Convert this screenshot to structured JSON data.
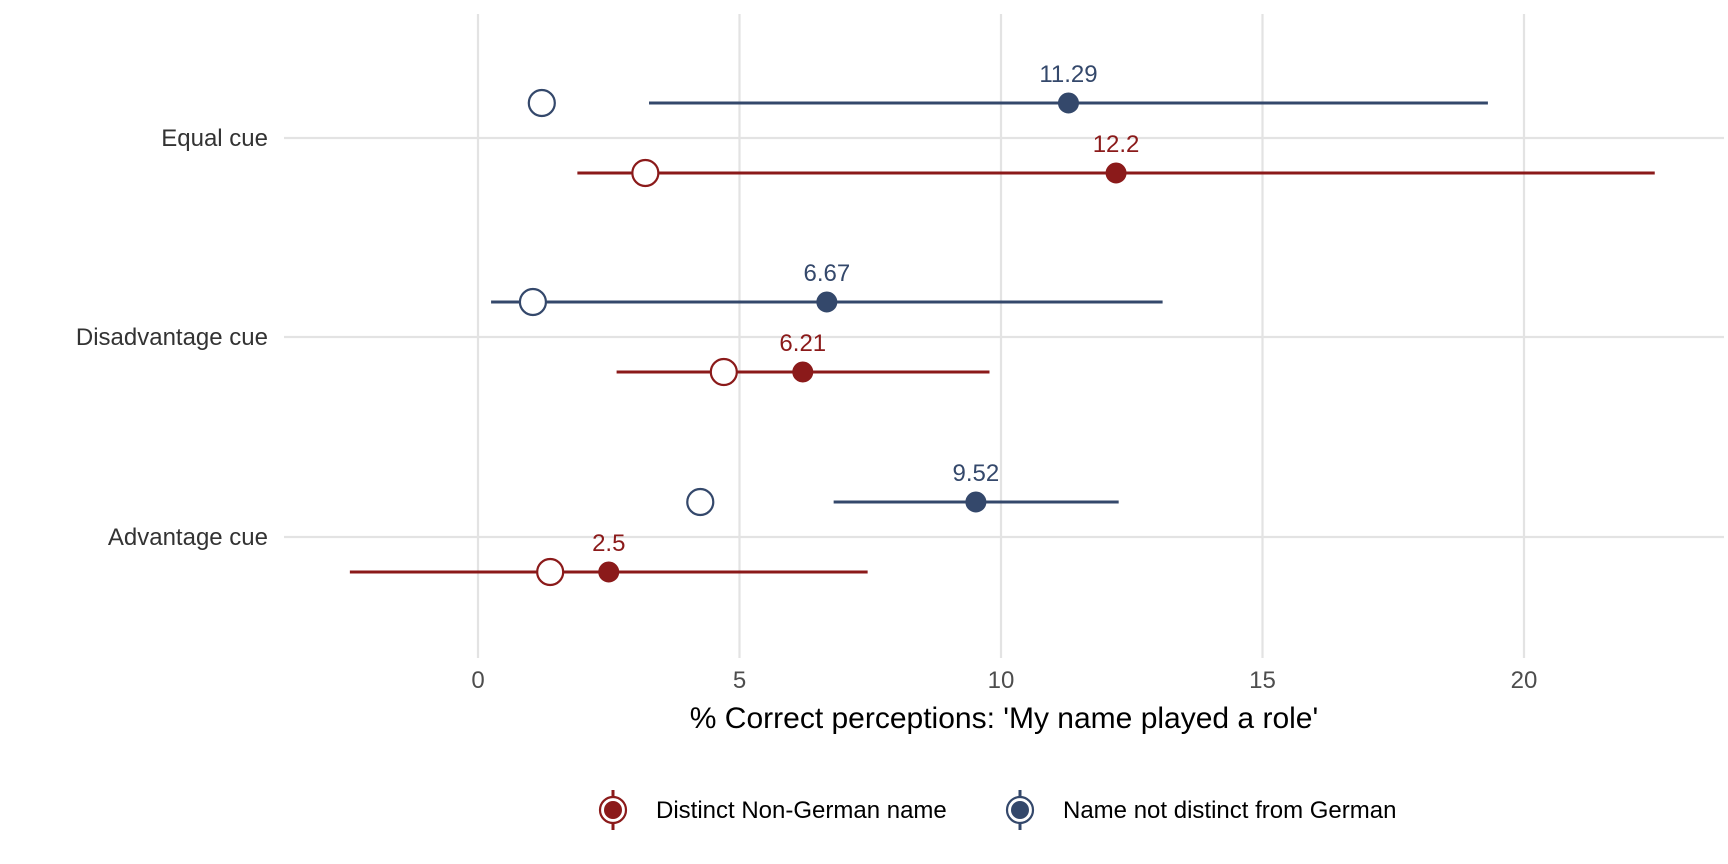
{
  "chart_data": {
    "type": "dot-errorbar",
    "xlabel": "% Correct perceptions: 'My name played a role'",
    "ylabel": "",
    "xlim": [
      -2.5,
      23
    ],
    "xticks": [
      0,
      5,
      10,
      15,
      20
    ],
    "grid": true,
    "legend_position": "bottom",
    "categories": [
      "Equal cue",
      "Disadvantage cue",
      "Advantage cue"
    ],
    "series": [
      {
        "name": "Distinct Non-German name",
        "color": "#8b1a1a",
        "points": [
          {
            "category": "Equal cue",
            "value": 12.2,
            "label": "12.2",
            "ci_low": 1.9,
            "ci_high": 22.5,
            "open_marker": 3.2
          },
          {
            "category": "Disadvantage cue",
            "value": 6.21,
            "label": "6.21",
            "ci_low": 2.65,
            "ci_high": 9.78,
            "open_marker": 4.7
          },
          {
            "category": "Advantage cue",
            "value": 2.5,
            "label": "2.5",
            "ci_low": -2.45,
            "ci_high": 7.45,
            "open_marker": 1.38
          }
        ]
      },
      {
        "name": "Name not distinct from German",
        "color": "#34486b",
        "points": [
          {
            "category": "Equal cue",
            "value": 11.29,
            "label": "11.29",
            "ci_low": 3.27,
            "ci_high": 19.31,
            "open_marker": 1.22
          },
          {
            "category": "Disadvantage cue",
            "value": 6.67,
            "label": "6.67",
            "ci_low": 0.25,
            "ci_high": 13.09,
            "open_marker": 1.05
          },
          {
            "category": "Advantage cue",
            "value": 9.52,
            "label": "9.52",
            "ci_low": 6.8,
            "ci_high": 12.25,
            "open_marker": 4.25
          }
        ]
      }
    ]
  }
}
